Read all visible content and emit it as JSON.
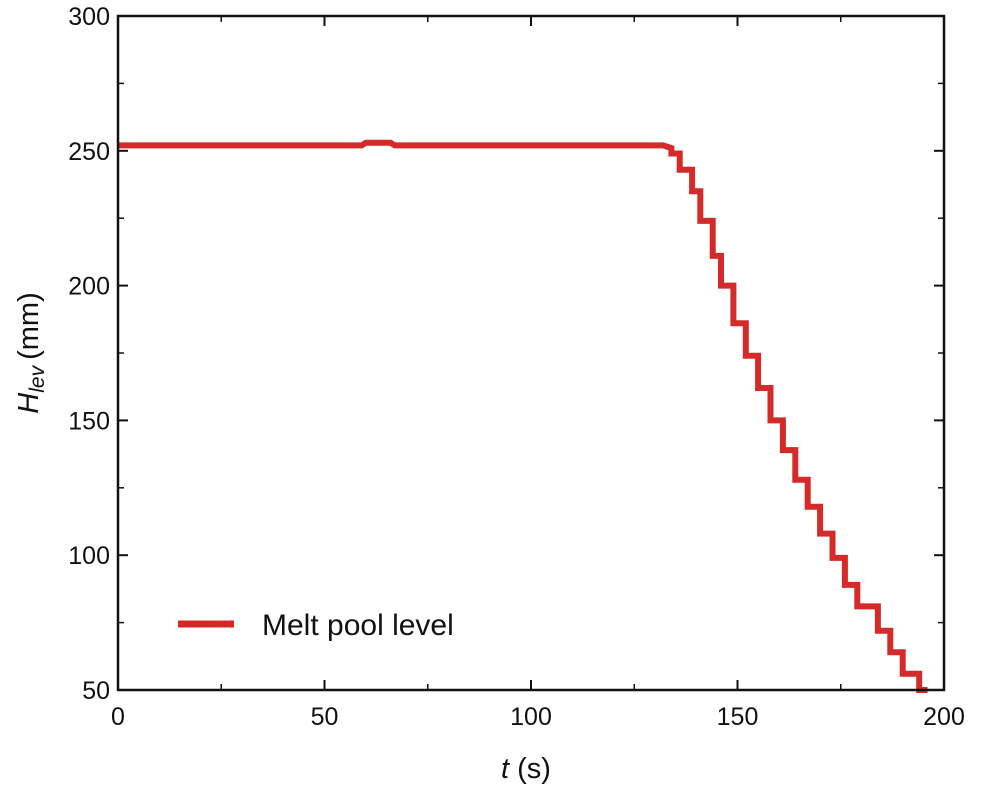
{
  "chart_data": {
    "type": "line",
    "title": "",
    "xlabel": {
      "var": "t",
      "unit": "(s)"
    },
    "ylabel": {
      "var": "H",
      "sub": "lev",
      "unit": "(mm)"
    },
    "xlim": [
      0,
      200
    ],
    "ylim": [
      50,
      300
    ],
    "xticks": [
      0,
      50,
      100,
      150,
      200
    ],
    "yticks": [
      50,
      100,
      150,
      200,
      250,
      300
    ],
    "x_minor_step": 25,
    "y_minor_step": 25,
    "grid": false,
    "legend_position": "bottom-left",
    "colors": {
      "series": "#d42a2a",
      "axes": "#111111"
    },
    "series": [
      {
        "name": "Melt pool level",
        "points": [
          [
            0,
            252
          ],
          [
            59,
            252
          ],
          [
            60,
            253
          ],
          [
            66,
            253
          ],
          [
            67,
            252
          ],
          [
            132,
            252
          ],
          [
            134,
            251
          ],
          [
            134,
            249
          ],
          [
            136,
            249
          ],
          [
            136,
            243
          ],
          [
            139,
            243
          ],
          [
            139,
            235
          ],
          [
            141,
            235
          ],
          [
            141,
            224
          ],
          [
            144,
            224
          ],
          [
            144,
            211
          ],
          [
            146,
            211
          ],
          [
            146,
            200
          ],
          [
            149,
            200
          ],
          [
            149,
            186
          ],
          [
            152,
            186
          ],
          [
            152,
            174
          ],
          [
            155,
            174
          ],
          [
            155,
            162
          ],
          [
            158,
            162
          ],
          [
            158,
            150
          ],
          [
            161,
            150
          ],
          [
            161,
            139
          ],
          [
            164,
            139
          ],
          [
            164,
            128
          ],
          [
            167,
            128
          ],
          [
            167,
            118
          ],
          [
            170,
            118
          ],
          [
            170,
            108
          ],
          [
            173,
            108
          ],
          [
            173,
            99
          ],
          [
            176,
            99
          ],
          [
            176,
            89
          ],
          [
            179,
            89
          ],
          [
            179,
            81
          ],
          [
            184,
            81
          ],
          [
            184,
            72
          ],
          [
            187,
            72
          ],
          [
            187,
            64
          ],
          [
            190,
            64
          ],
          [
            190,
            56
          ],
          [
            194,
            56
          ],
          [
            194,
            50
          ],
          [
            196,
            50
          ]
        ]
      }
    ]
  }
}
